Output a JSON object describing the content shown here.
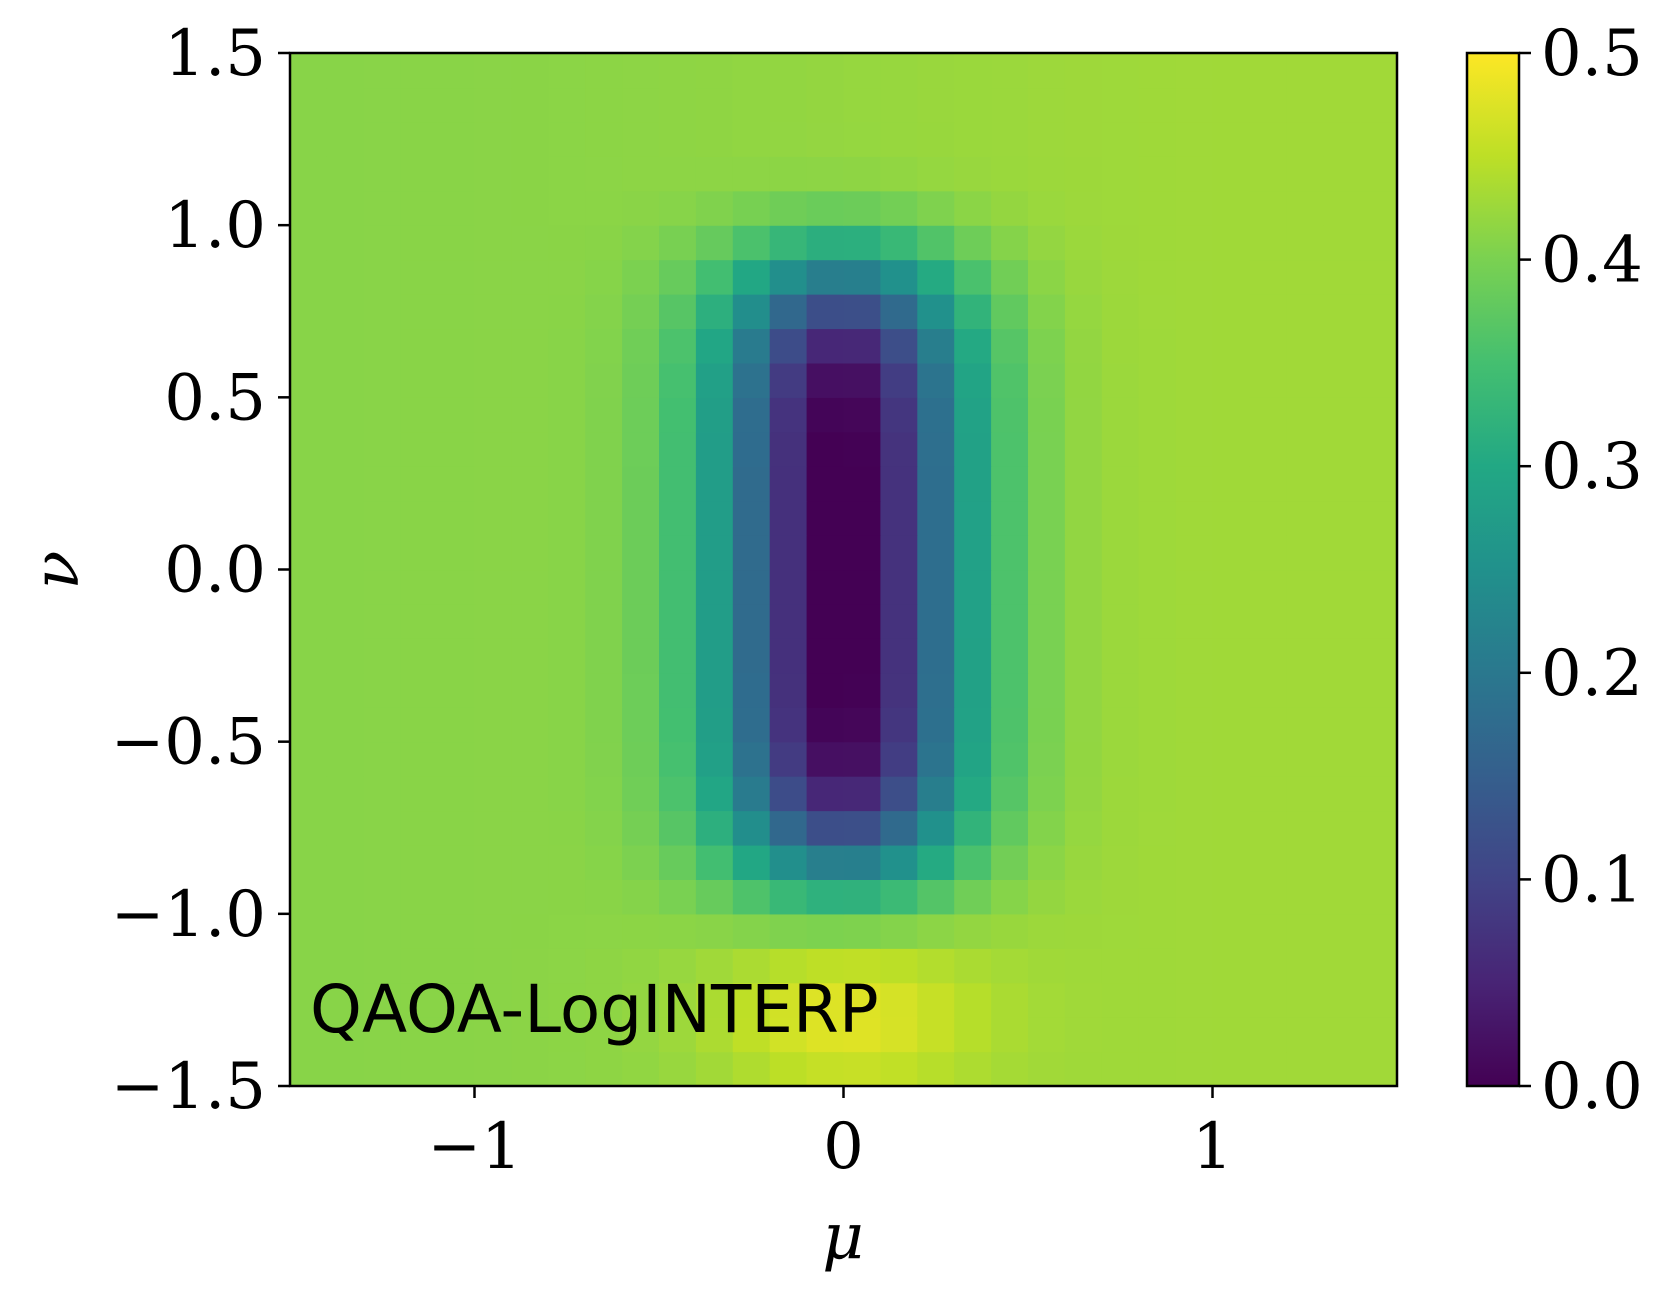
{
  "chart_data": {
    "type": "heatmap",
    "title": "",
    "xlabel": "μ",
    "ylabel": "ν",
    "xlim": [
      -1.5,
      1.5
    ],
    "ylim": [
      -1.5,
      1.5
    ],
    "x_ticks": [
      -1,
      0,
      1
    ],
    "x_tick_labels": [
      "−1",
      "0",
      "1"
    ],
    "y_ticks": [
      1.5,
      1.0,
      0.5,
      0.0,
      -0.5,
      -1.0,
      -1.5
    ],
    "y_tick_labels": [
      "1.5",
      "1.0",
      "0.5",
      "0.0",
      "−0.5",
      "−1.0",
      "−1.5"
    ],
    "colorbar": {
      "range": [
        0.0,
        0.5
      ],
      "ticks": [
        0.5,
        0.4,
        0.3,
        0.2,
        0.1,
        0.0
      ],
      "tick_labels": [
        "0.5",
        "0.4",
        "0.3",
        "0.2",
        "0.1",
        "0.0"
      ],
      "colormap": "viridis"
    },
    "grid_resolution": [
      30,
      30
    ],
    "annotation": "QAOA-LogINTERP",
    "grid": false,
    "description_of_values": {
      "background_level": 0.42,
      "minimum": {
        "mu": 0.0,
        "nu": 0.0,
        "value": 0.0
      },
      "maximum": {
        "mu": 0.0,
        "nu": -1.3,
        "value": 0.47
      }
    }
  }
}
